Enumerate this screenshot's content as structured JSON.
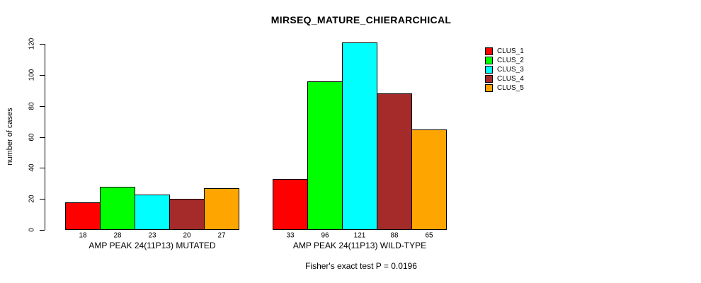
{
  "title": "MIRSEQ_MATURE_CHIERARCHICAL",
  "colors": {
    "background": "#ffffff",
    "axis": "#000000",
    "text": "#000000"
  },
  "chart_data": {
    "type": "bar",
    "title": "MIRSEQ_MATURE_CHIERARCHICAL",
    "xlabel": "",
    "ylabel": "number of cases",
    "ylim": [
      0,
      120
    ],
    "y_ticks": [
      0,
      20,
      40,
      60,
      80,
      100,
      120
    ],
    "grid": "off",
    "legend_position": "top-right",
    "groups": [
      {
        "label": "AMP PEAK 24(11P13) MUTATED"
      },
      {
        "label": "AMP PEAK 24(11P13) WILD-TYPE"
      }
    ],
    "series": [
      {
        "name": "CLUS_1",
        "color": "#FF0000",
        "values": [
          18,
          33
        ]
      },
      {
        "name": "CLUS_2",
        "color": "#00FF00",
        "values": [
          28,
          96
        ]
      },
      {
        "name": "CLUS_3",
        "color": "#00FFFF",
        "values": [
          23,
          121
        ]
      },
      {
        "name": "CLUS_4",
        "color": "#A52A2A",
        "values": [
          20,
          88
        ]
      },
      {
        "name": "CLUS_5",
        "color": "#FFA500",
        "values": [
          27,
          65
        ]
      }
    ],
    "bar_value_labels": [
      [
        "18",
        "28",
        "23",
        "20",
        "27"
      ],
      [
        "33",
        "96",
        "121",
        "88",
        "65"
      ]
    ],
    "annotation": "Fisher's exact test P = 0.0196"
  }
}
